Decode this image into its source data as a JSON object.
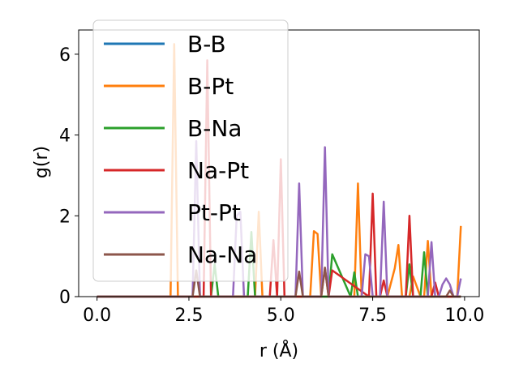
{
  "chart_data": {
    "type": "line",
    "title": "",
    "xlabel": "r (Å)",
    "ylabel": "g(r)",
    "xlim": [
      -0.5,
      10.4
    ],
    "ylim": [
      0,
      6.6
    ],
    "xticks": [
      0.0,
      2.5,
      5.0,
      7.5,
      10.0
    ],
    "xtick_labels": [
      "0.0",
      "2.5",
      "5.0",
      "7.5",
      "10.0"
    ],
    "yticks": [
      0,
      2,
      4,
      6
    ],
    "ytick_labels": [
      "0",
      "2",
      "4",
      "6"
    ],
    "grid": false,
    "legend_position": "top-left",
    "series": [
      {
        "name": "B-B",
        "color": "#1f77b4",
        "x": [
          0.0,
          9.9
        ],
        "y": [
          0.0,
          0.0
        ]
      },
      {
        "name": "B-Pt",
        "color": "#ff7f0e",
        "x": [
          0.0,
          2.0,
          2.1,
          2.2,
          2.3,
          4.3,
          4.4,
          4.5,
          4.6,
          5.6,
          5.8,
          5.9,
          6.0,
          6.1,
          6.9,
          7.0,
          7.1,
          7.2,
          7.9,
          8.1,
          8.2,
          8.3,
          8.5,
          8.6,
          8.8,
          8.9,
          9.0,
          9.1,
          9.3,
          9.6,
          9.7,
          9.8,
          9.9
        ],
        "y": [
          0.0,
          0.0,
          6.25,
          0.0,
          0.0,
          0.0,
          2.1,
          0.0,
          0.0,
          0.0,
          0.0,
          1.62,
          1.55,
          0.0,
          0.0,
          0.0,
          2.8,
          0.0,
          0.0,
          0.7,
          1.28,
          0.0,
          0.0,
          0.5,
          0.0,
          0.0,
          1.38,
          0.0,
          0.0,
          0.0,
          0.0,
          0.0,
          1.75
        ]
      },
      {
        "name": "B-Na",
        "color": "#2ca02c",
        "x": [
          0.0,
          3.0,
          3.1,
          3.2,
          3.3,
          4.1,
          4.2,
          4.3,
          6.1,
          6.2,
          6.3,
          6.4,
          6.9,
          7.0,
          7.1,
          8.4,
          8.5,
          8.6,
          8.7,
          8.8,
          8.9,
          9.0,
          9.9
        ],
        "y": [
          0.0,
          0.0,
          0.0,
          0.8,
          0.0,
          0.0,
          1.6,
          0.0,
          0.0,
          0.0,
          0.0,
          1.05,
          0.0,
          0.6,
          0.0,
          0.0,
          0.8,
          0.0,
          0.0,
          0.0,
          1.1,
          0.0,
          0.0
        ]
      },
      {
        "name": "Na-Pt",
        "color": "#d62728",
        "x": [
          0.0,
          2.9,
          3.0,
          3.1,
          3.2,
          4.7,
          4.8,
          4.9,
          5.0,
          5.1,
          6.1,
          6.2,
          6.3,
          6.4,
          7.4,
          7.5,
          7.6,
          7.7,
          7.8,
          7.9,
          8.4,
          8.5,
          8.6,
          9.1,
          9.2,
          9.3,
          9.9
        ],
        "y": [
          0.0,
          0.0,
          5.85,
          0.0,
          0.0,
          0.0,
          1.4,
          0.0,
          3.4,
          0.0,
          0.0,
          0.7,
          0.0,
          0.65,
          0.0,
          2.55,
          0.0,
          0.0,
          0.4,
          0.0,
          0.0,
          2.0,
          0.0,
          0.0,
          0.35,
          0.0,
          0.0
        ]
      },
      {
        "name": "Pt-Pt",
        "color": "#9467bd",
        "x": [
          0.0,
          2.6,
          2.7,
          2.8,
          3.7,
          3.8,
          3.9,
          4.0,
          5.3,
          5.4,
          5.5,
          5.6,
          6.0,
          6.1,
          6.2,
          6.3,
          6.6,
          6.7,
          6.8,
          6.9,
          7.2,
          7.3,
          7.4,
          7.5,
          7.7,
          7.8,
          7.9,
          8.0,
          8.6,
          8.7,
          8.8,
          8.9,
          9.0,
          9.1,
          9.2,
          9.3,
          9.4,
          9.5,
          9.6,
          9.7,
          9.8,
          9.9
        ],
        "y": [
          0.0,
          0.0,
          3.85,
          0.0,
          0.0,
          2.0,
          2.1,
          0.0,
          0.0,
          0.0,
          2.8,
          0.0,
          0.0,
          0.0,
          3.7,
          0.0,
          0.0,
          0.0,
          0.0,
          0.0,
          0.0,
          1.05,
          1.0,
          0.0,
          0.0,
          2.35,
          0.0,
          0.0,
          0.0,
          0.0,
          0.0,
          0.0,
          0.0,
          1.35,
          0.0,
          0.0,
          0.3,
          0.45,
          0.3,
          0.0,
          0.0,
          0.45
        ]
      },
      {
        "name": "Na-Na",
        "color": "#8c564b",
        "x": [
          0.0,
          2.6,
          2.7,
          2.8,
          5.4,
          5.5,
          5.6,
          6.1,
          6.2,
          6.3,
          9.5,
          9.6,
          9.7,
          9.9
        ],
        "y": [
          0.0,
          0.0,
          0.65,
          0.0,
          0.0,
          0.62,
          0.0,
          0.0,
          0.72,
          0.0,
          0.0,
          0.15,
          0.0,
          0.0
        ]
      }
    ]
  }
}
